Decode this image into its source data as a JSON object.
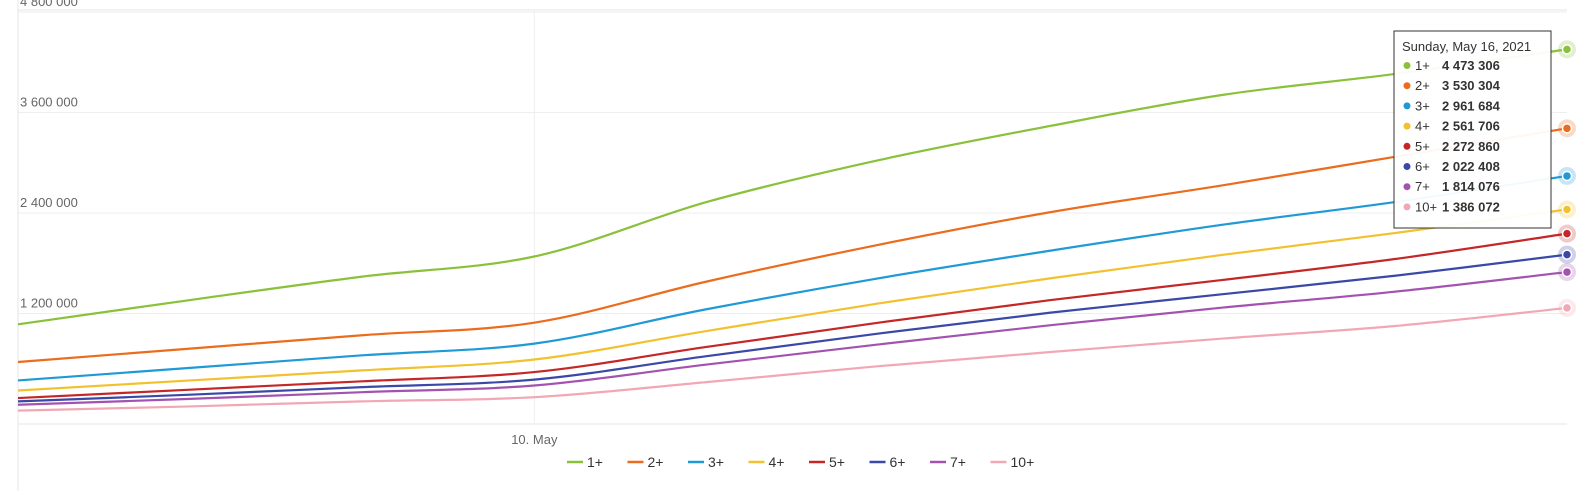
{
  "chart_data": {
    "type": "line",
    "y_ticks": [
      "4 800 000",
      "3 600 000",
      "2 400 000",
      "1 200 000"
    ],
    "ylim": [
      0,
      4800000
    ],
    "x_tick": {
      "label": "10. May",
      "date": "2021-05-10"
    },
    "x_dates": [
      "2021-05-07",
      "2021-05-08",
      "2021-05-09",
      "2021-05-10",
      "2021-05-11",
      "2021-05-12",
      "2021-05-13",
      "2021-05-14",
      "2021-05-15",
      "2021-05-16"
    ],
    "grid": true,
    "legend_position": "bottom",
    "series": [
      {
        "name": "1+",
        "color": "#8ac13b",
        "values": [
          1190000,
          1480000,
          1760000,
          2000000,
          2650000,
          3150000,
          3560000,
          3930000,
          4180000,
          4473306
        ]
      },
      {
        "name": "2+",
        "color": "#eb6c1d",
        "values": [
          740000,
          900000,
          1060000,
          1210000,
          1700000,
          2140000,
          2530000,
          2850000,
          3190000,
          3530304
        ]
      },
      {
        "name": "3+",
        "color": "#1f9ad6",
        "values": [
          520000,
          670000,
          820000,
          960000,
          1370000,
          1740000,
          2070000,
          2380000,
          2650000,
          2961684
        ]
      },
      {
        "name": "4+",
        "color": "#f2c12e",
        "values": [
          400000,
          520000,
          640000,
          770000,
          1110000,
          1440000,
          1740000,
          2020000,
          2280000,
          2561706
        ]
      },
      {
        "name": "5+",
        "color": "#c42727",
        "values": [
          310000,
          410000,
          510000,
          620000,
          920000,
          1210000,
          1480000,
          1720000,
          1970000,
          2272860
        ]
      },
      {
        "name": "6+",
        "color": "#3a48a8",
        "values": [
          270000,
          350000,
          440000,
          530000,
          810000,
          1080000,
          1330000,
          1550000,
          1770000,
          2022408
        ]
      },
      {
        "name": "7+",
        "color": "#a452b0",
        "values": [
          230000,
          300000,
          380000,
          460000,
          710000,
          950000,
          1180000,
          1390000,
          1580000,
          1814076
        ]
      },
      {
        "name": "10+",
        "color": "#f2a8b4",
        "values": [
          160000,
          210000,
          270000,
          320000,
          500000,
          690000,
          860000,
          1020000,
          1170000,
          1386072
        ]
      }
    ],
    "tooltip": {
      "header": "Sunday, May 16, 2021",
      "rows": [
        {
          "name": "1+",
          "value": "4 473 306"
        },
        {
          "name": "2+",
          "value": "3 530 304"
        },
        {
          "name": "3+",
          "value": "2 961 684"
        },
        {
          "name": "4+",
          "value": "2 561 706"
        },
        {
          "name": "5+",
          "value": "2 272 860"
        },
        {
          "name": "6+",
          "value": "2 022 408"
        },
        {
          "name": "7+",
          "value": "1 814 076"
        },
        {
          "name": "10+",
          "value": "1 386 072"
        }
      ]
    }
  }
}
